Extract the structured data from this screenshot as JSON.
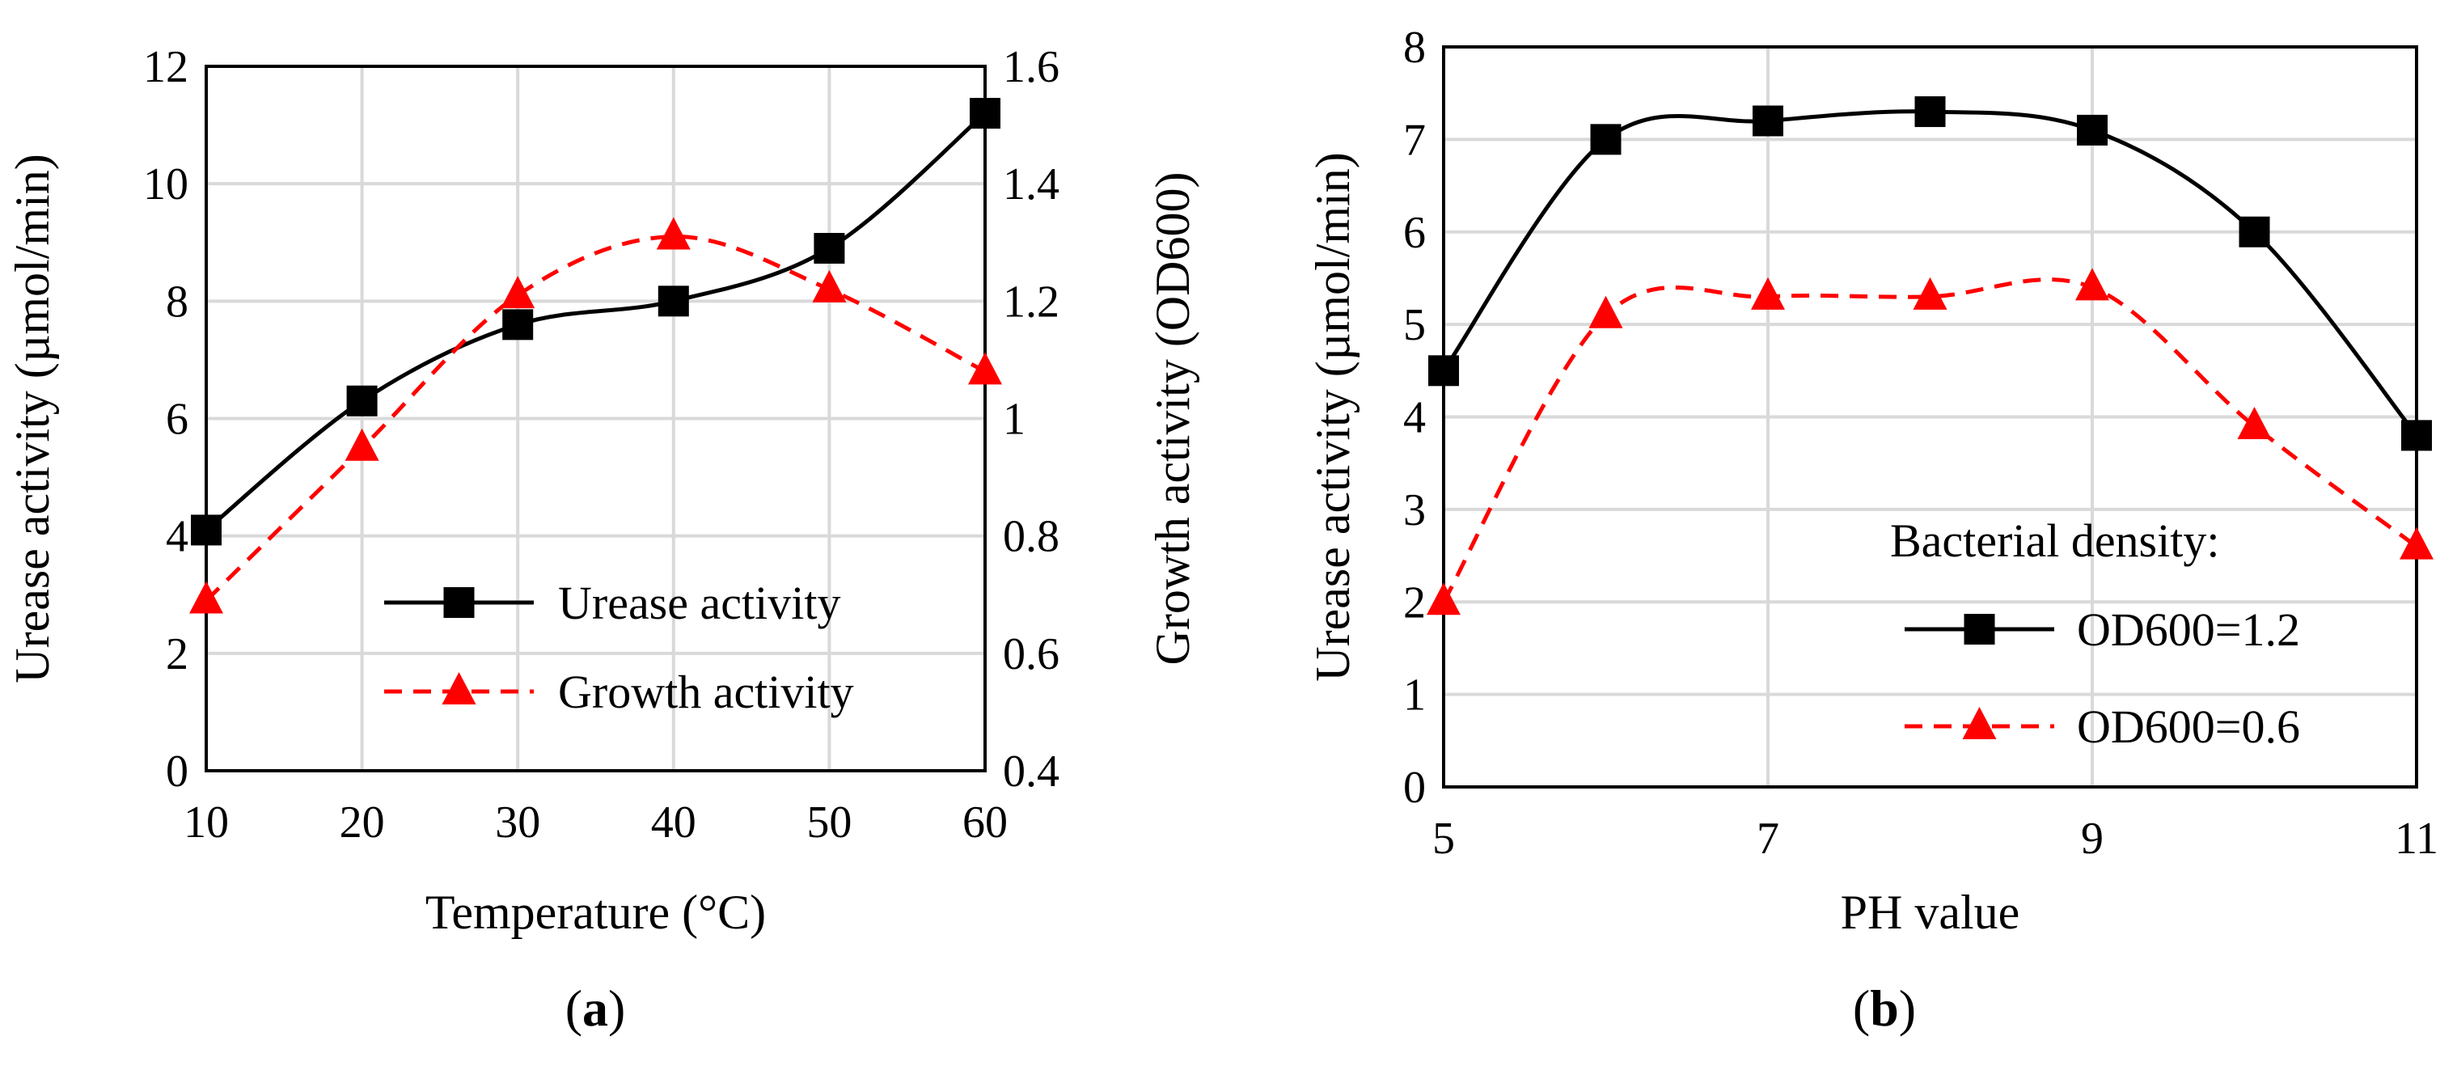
{
  "chart_data": [
    {
      "type": "line",
      "panel_label": {
        "open": "(",
        "letter": "a",
        "close": ")"
      },
      "xlabel": "Temperature (°C)",
      "ylabel": "Urease activity (µmol/min)",
      "ylabel_right": "Growth activity (OD600)",
      "xlim": [
        10,
        60
      ],
      "ylim": [
        0,
        12
      ],
      "ylim_right": [
        0.4,
        1.6
      ],
      "xticks": [
        10,
        20,
        30,
        40,
        50,
        60
      ],
      "yticks": [
        0,
        2,
        4,
        6,
        8,
        10,
        12
      ],
      "yticks_right": [
        "0.4",
        "0.6",
        "0.8",
        "1",
        "1.2",
        "1.4",
        "1.6"
      ],
      "grid": true,
      "legend": "bottom-right",
      "series": [
        {
          "name": "Urease activity",
          "axis": "left",
          "style": "solid",
          "marker": "square",
          "color": "#000000",
          "x": [
            10,
            20,
            30,
            40,
            50,
            60
          ],
          "y": [
            4.1,
            6.3,
            7.6,
            8.0,
            8.9,
            11.2
          ]
        },
        {
          "name": "Growth activity",
          "axis": "right",
          "style": "dashed",
          "marker": "triangle",
          "color": "#ff0000",
          "x": [
            10,
            20,
            30,
            40,
            50,
            60
          ],
          "y": [
            0.69,
            0.95,
            1.21,
            1.31,
            1.22,
            1.08
          ]
        }
      ]
    },
    {
      "type": "line",
      "panel_label": {
        "open": "(",
        "letter": "b",
        "close": ")"
      },
      "xlabel": "PH value",
      "ylabel": "Urease activity (µmol/min)",
      "xlim": [
        5,
        11
      ],
      "ylim": [
        0,
        8
      ],
      "xticks": [
        5,
        7,
        9,
        11
      ],
      "yticks": [
        0,
        1,
        2,
        3,
        4,
        5,
        6,
        7,
        8
      ],
      "grid": true,
      "legend": "bottom-right",
      "legend_title": "Bacterial density:",
      "series": [
        {
          "name": "OD600=1.2",
          "style": "solid",
          "marker": "square",
          "color": "#000000",
          "x": [
            5,
            6,
            7,
            8,
            9,
            10,
            11
          ],
          "y": [
            4.5,
            7.0,
            7.2,
            7.3,
            7.1,
            6.0,
            3.8
          ]
        },
        {
          "name": "OD600=0.6",
          "style": "dashed",
          "marker": "triangle",
          "color": "#ff0000",
          "x": [
            5,
            6,
            7,
            8,
            9,
            10,
            11
          ],
          "y": [
            2.0,
            5.1,
            5.3,
            5.3,
            5.4,
            3.9,
            2.6
          ]
        }
      ]
    }
  ]
}
